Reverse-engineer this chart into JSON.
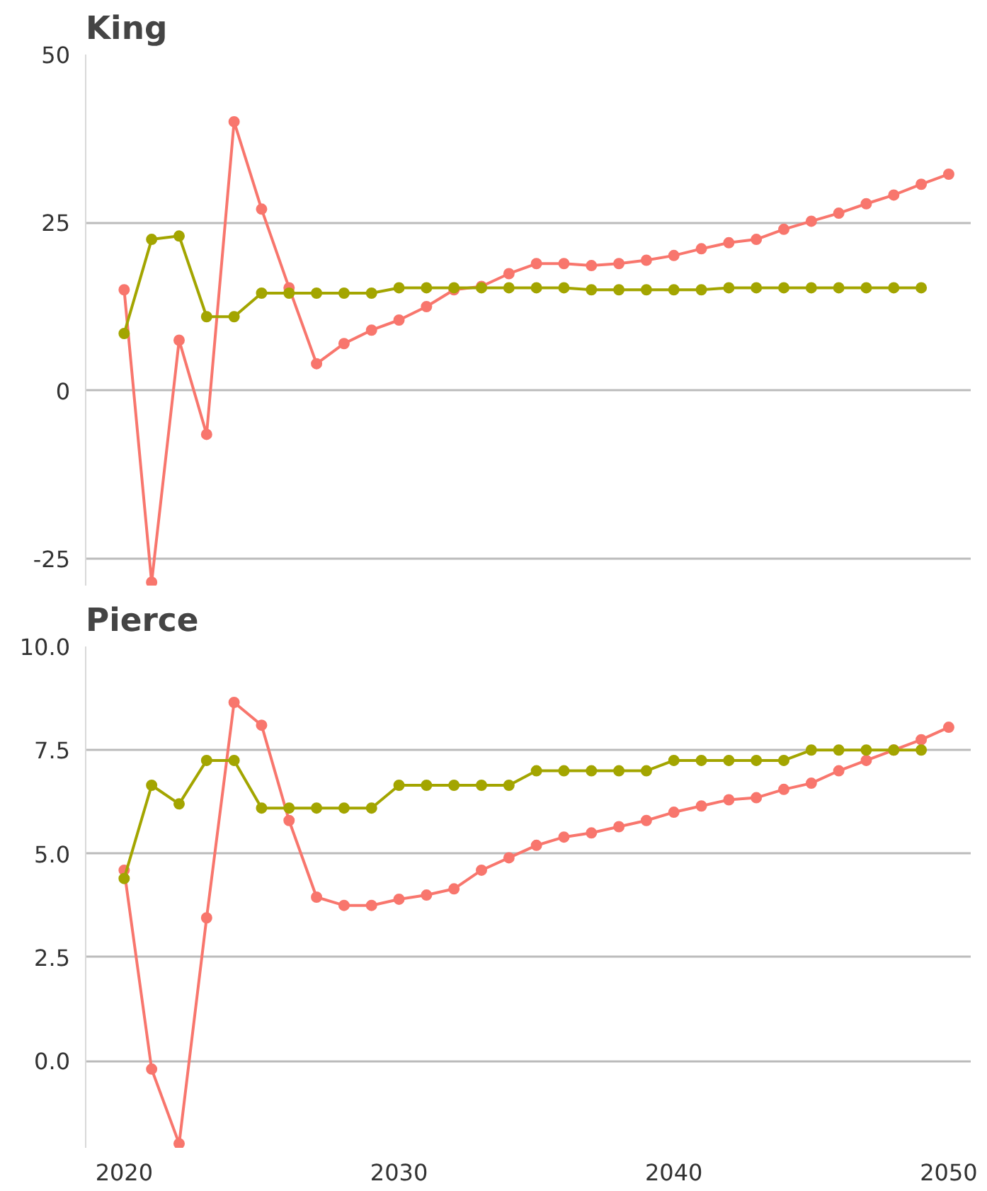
{
  "chart_data": [
    {
      "type": "line",
      "title": "King",
      "x": [
        2020,
        2021,
        2022,
        2023,
        2024,
        2025,
        2026,
        2027,
        2028,
        2029,
        2030,
        2031,
        2032,
        2033,
        2034,
        2035,
        2036,
        2037,
        2038,
        2039,
        2040,
        2041,
        2042,
        2043,
        2044,
        2045,
        2046,
        2047,
        2048,
        2049,
        2050
      ],
      "series": [
        {
          "color": "#f8766d",
          "values": [
            15,
            -28.5,
            7.5,
            -6.5,
            40,
            27,
            15.3,
            4,
            7,
            9,
            10.5,
            12.5,
            15,
            15.5,
            17.4,
            18.9,
            18.9,
            18.6,
            18.9,
            19.4,
            20.1,
            21.1,
            22,
            22.5,
            24,
            25.2,
            26.4,
            27.8,
            29.1,
            30.7,
            32.2
          ]
        },
        {
          "color": "#a3a500",
          "values": [
            8.5,
            22.5,
            23,
            11,
            11,
            14.5,
            14.5,
            14.5,
            14.5,
            14.5,
            15.3,
            15.3,
            15.3,
            15.3,
            15.3,
            15.3,
            15.3,
            15,
            15,
            15,
            15,
            15,
            15.3,
            15.3,
            15.3,
            15.3,
            15.3,
            15.3,
            15.3,
            15.3,
            null
          ]
        }
      ],
      "xlim": [
        2018.6,
        2050.8
      ],
      "xticks": [
        2020,
        2030,
        2040,
        2050
      ],
      "ylim": [
        -29,
        50
      ],
      "yticks": [
        -25,
        0,
        25,
        50
      ],
      "tick_labels": "y",
      "grid": "y",
      "marker": "circle",
      "line_style": "solid"
    },
    {
      "type": "line",
      "title": "Pierce",
      "x": [
        2020,
        2021,
        2022,
        2023,
        2024,
        2025,
        2026,
        2027,
        2028,
        2029,
        2030,
        2031,
        2032,
        2033,
        2034,
        2035,
        2036,
        2037,
        2038,
        2039,
        2040,
        2041,
        2042,
        2043,
        2044,
        2045,
        2046,
        2047,
        2048,
        2049,
        2050
      ],
      "series": [
        {
          "color": "#f8766d",
          "values": [
            4.6,
            -0.2,
            -2.0,
            3.45,
            8.65,
            8.1,
            5.8,
            3.95,
            3.75,
            3.75,
            3.9,
            4.0,
            4.15,
            4.6,
            4.9,
            5.2,
            5.4,
            5.5,
            5.65,
            5.8,
            6.0,
            6.15,
            6.3,
            6.35,
            6.55,
            6.7,
            7.0,
            7.25,
            7.5,
            7.75,
            8.05
          ]
        },
        {
          "color": "#a3a500",
          "values": [
            4.4,
            6.65,
            6.2,
            7.25,
            7.25,
            6.1,
            6.1,
            6.1,
            6.1,
            6.1,
            6.65,
            6.65,
            6.65,
            6.65,
            6.65,
            7.0,
            7.0,
            7.0,
            7.0,
            7.0,
            7.25,
            7.25,
            7.25,
            7.25,
            7.25,
            7.5,
            7.5,
            7.5,
            7.5,
            7.5,
            null
          ]
        }
      ],
      "xlim": [
        2018.6,
        2050.8
      ],
      "xticks": [
        2020,
        2030,
        2040,
        2050
      ],
      "ylim": [
        -2.1,
        10
      ],
      "yticks": [
        {
          "value": 0,
          "label": "0.0"
        },
        {
          "value": 2.5,
          "label": "2.5"
        },
        {
          "value": 5,
          "label": "5.0"
        },
        {
          "value": 7.5,
          "label": "7.5"
        },
        {
          "value": 10,
          "label": "10.0"
        }
      ],
      "grid": "y",
      "marker": "circle",
      "line_style": "solid"
    }
  ]
}
